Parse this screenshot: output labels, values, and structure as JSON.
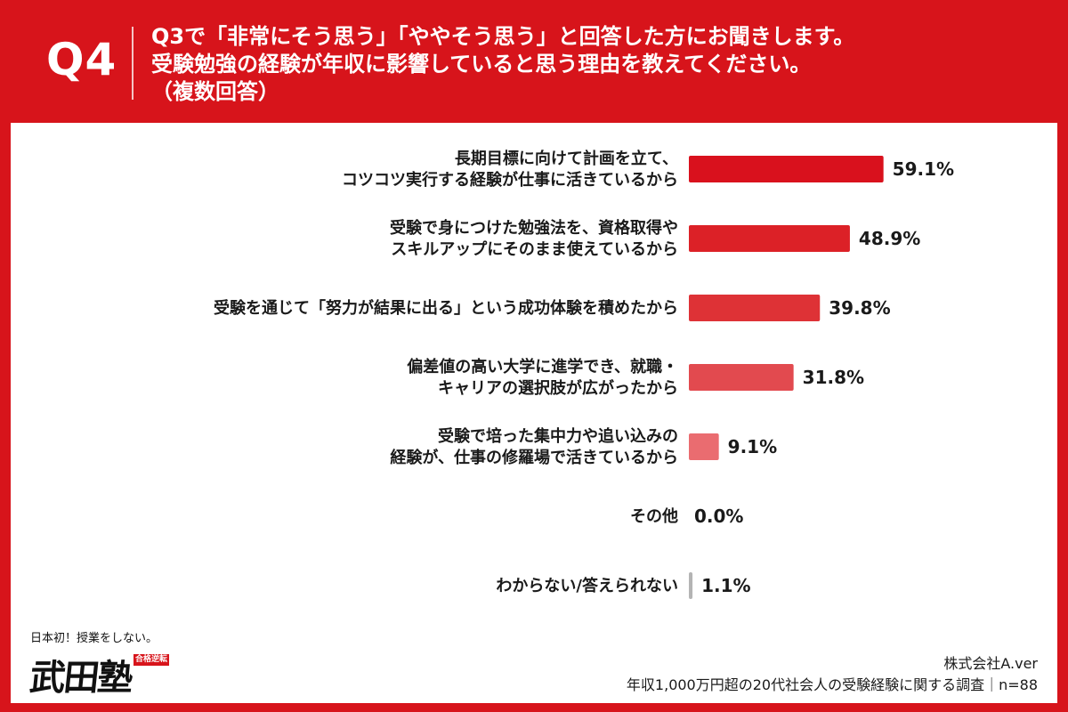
{
  "header": {
    "question_number": "Q4",
    "question_lines": [
      "Q3で「非常にそう思う」「ややそう思う」と回答した方にお聞きします。",
      "受験勉強の経験が年収に影響していると思う理由を教えてください。",
      "（複数回答）"
    ]
  },
  "chart_data": {
    "type": "bar",
    "orientation": "horizontal",
    "categories": [
      [
        "長期目標に向けて計画を立て、",
        "コツコツ実行する経験が仕事に活きているから"
      ],
      [
        "受験で身につけた勉強法を、資格取得や",
        "スキルアップにそのまま使えているから"
      ],
      [
        "受験を通じて「努力が結果に出る」という成功体験を積めたから"
      ],
      [
        "偏差値の高い大学に進学でき、就職・",
        "キャリアの選択肢が広がったから"
      ],
      [
        "受験で培った集中力や追い込みの",
        "経験が、仕事の修羅場で活きているから"
      ],
      [
        "その他"
      ],
      [
        "わからない/答えられない"
      ]
    ],
    "values": [
      59.1,
      48.9,
      39.8,
      31.8,
      9.1,
      0.0,
      1.1
    ],
    "value_labels": [
      "59.1%",
      "48.9%",
      "39.8%",
      "31.8%",
      "9.1%",
      "0.0%",
      "1.1%"
    ],
    "bar_colors": [
      "#d9111d",
      "#dc2127",
      "#de3236",
      "#e24a4f",
      "#ea6c70",
      "#ea6c70",
      "#b4b4b4"
    ],
    "xlim": [
      0,
      100
    ],
    "grid": false
  },
  "logo": {
    "tagline": "日本初！授業をしない。",
    "name": "武田塾",
    "stamp": "合格逆転"
  },
  "credit": {
    "company": "株式会社A.ver",
    "survey": "年収1,000万円超の20代社会人の受験経験に関する調査｜n=88"
  }
}
